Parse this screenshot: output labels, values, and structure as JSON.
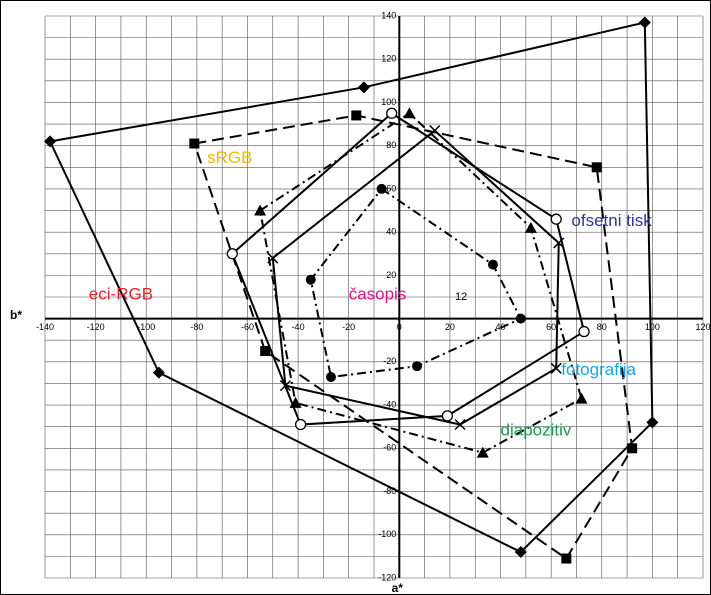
{
  "chart_data": {
    "type": "polygon",
    "xlabel": "a*",
    "ylabel": "b*",
    "xlim": [
      -140,
      120
    ],
    "ylim": [
      -120,
      140
    ],
    "xticks": [
      -140,
      -120,
      -100,
      -80,
      -60,
      -40,
      -20,
      0,
      20,
      40,
      60,
      80,
      100,
      120
    ],
    "yticks": [
      -120,
      -100,
      -80,
      -60,
      -40,
      -20,
      0,
      20,
      40,
      60,
      80,
      100,
      120,
      140
    ],
    "xminor_ticks": [
      -130,
      -110,
      -90,
      -70,
      -50,
      -30,
      -10,
      10,
      30,
      50,
      70,
      90,
      110
    ],
    "yminor_ticks": [
      -110,
      -90,
      -70,
      -50,
      -30,
      -10,
      10,
      30,
      50,
      70,
      90,
      110,
      130
    ],
    "grid": true,
    "annotations": [
      "12"
    ],
    "series": [
      {
        "name": "eci-RGB",
        "color": "#000000",
        "label_color": "#e8202a",
        "marker": "diamond",
        "dash": "solid",
        "x": [
          -138,
          -14,
          97,
          100,
          48,
          -95
        ],
        "values": [
          82,
          107,
          137,
          -48,
          -108,
          -25
        ]
      },
      {
        "name": "sRGB",
        "color": "#000000",
        "label_color": "#f2b705",
        "marker": "square",
        "dash": "dashed",
        "x": [
          -81,
          -17,
          78,
          92,
          66,
          -53
        ],
        "values": [
          81,
          94,
          70,
          -60,
          -111,
          -15
        ]
      },
      {
        "name": "diapozitiv",
        "color": "#000000",
        "label_color": "#1a9a4a",
        "marker": "triangle",
        "dash": "dashdot",
        "x": [
          -55,
          4,
          52,
          72,
          33,
          -41
        ],
        "values": [
          50,
          95,
          42,
          -37,
          -62,
          -39
        ]
      },
      {
        "name": "fotografija",
        "color": "#000000",
        "label_color": "#1aa3e0",
        "marker": "x",
        "dash": "solid",
        "x": [
          14,
          63,
          62,
          24,
          -45,
          -50
        ],
        "values": [
          87,
          35,
          -23,
          -49,
          -31,
          28
        ]
      },
      {
        "name": "ofsetni tisk",
        "color": "#000000",
        "label_color": "#2b3990",
        "marker": "circle-open",
        "dash": "solid",
        "x": [
          62,
          73,
          19,
          -39,
          -66,
          -3
        ],
        "values": [
          46,
          -6,
          -45,
          -49,
          30,
          95
        ]
      },
      {
        "name": "časopis",
        "color": "#000000",
        "label_color": "#d6168b",
        "marker": "circle",
        "dash": "dashdot",
        "x": [
          -7,
          37,
          48,
          7,
          -27,
          -35
        ],
        "values": [
          60,
          25,
          0,
          -22,
          -27,
          18
        ]
      }
    ]
  }
}
